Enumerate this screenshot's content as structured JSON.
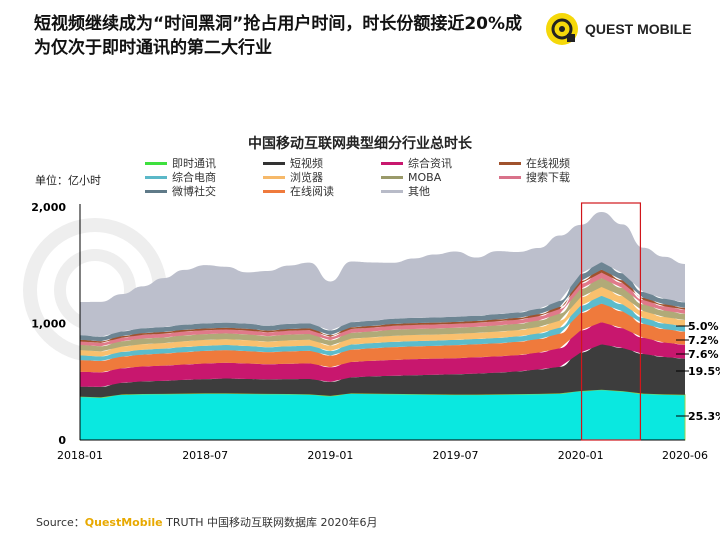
{
  "title": "短视频继续成为“时间黑洞”抢占用户时间，时长份额接近20%成为仅次于即时通讯的第二大行业",
  "logo": {
    "text": "QUEST MOBILE",
    "color": "#f5d80a"
  },
  "source": {
    "prefix": "Source：",
    "brand": "QuestMobile",
    "rest": " TRUTH 中国移动互联网数据库 2020年6月"
  },
  "chart_data": {
    "type": "area",
    "stacked": true,
    "title": "中国移动互联网典型细分行业总时长",
    "ylabel": "单位：亿小时",
    "ylim": [
      0,
      2000
    ],
    "yticks": [
      "0",
      "1,000",
      "2,000"
    ],
    "xticks": [
      "2018-01",
      "2018-07",
      "2019-01",
      "2019-07",
      "2020-01",
      "2020-06"
    ],
    "x": [
      "2018-01",
      "2018-02",
      "2018-03",
      "2018-04",
      "2018-05",
      "2018-06",
      "2018-07",
      "2018-08",
      "2018-09",
      "2018-10",
      "2018-11",
      "2018-12",
      "2019-01",
      "2019-02",
      "2019-03",
      "2019-04",
      "2019-05",
      "2019-06",
      "2019-07",
      "2019-08",
      "2019-09",
      "2019-10",
      "2019-11",
      "2019-12",
      "2020-01",
      "2020-02",
      "2020-03",
      "2020-04",
      "2020-05",
      "2020-06"
    ],
    "highlight": [
      "2020-02",
      "2020-03"
    ],
    "highlight_color": "#d0161b",
    "legend": [
      "即时通讯",
      "短视频",
      "综合资讯",
      "在线视频",
      "综合电商",
      "浏览器",
      "MOBA",
      "搜索下载",
      "微博社交",
      "在线阅读",
      "其他"
    ],
    "legend_colors": [
      "#3ee03e",
      "#333333",
      "#c8176e",
      "#a0522d",
      "#5bb8c8",
      "#f6b96a",
      "#9a9a6a",
      "#d9728a",
      "#5f7a88",
      "#ef7a3c",
      "#b8bbc8"
    ],
    "series": [
      {
        "name": "即时通讯",
        "color": "#0ae8e0",
        "values": [
          372,
          366,
          391,
          395,
          396,
          398,
          400,
          400,
          398,
          396,
          395,
          392,
          379,
          400,
          398,
          396,
          394,
          392,
          390,
          390,
          392,
          394,
          396,
          400,
          421,
          431,
          420,
          398,
          392,
          388
        ]
      },
      {
        "name": "短视频",
        "color": "#3d3d3d",
        "values": [
          86,
          90,
          100,
          108,
          112,
          118,
          122,
          128,
          126,
          124,
          128,
          132,
          120,
          138,
          148,
          155,
          162,
          168,
          174,
          180,
          186,
          195,
          210,
          228,
          330,
          390,
          370,
          340,
          320,
          310
        ]
      },
      {
        "name": "综合资讯",
        "color": "#c8176e",
        "values": [
          128,
          125,
          125,
          128,
          130,
          132,
          135,
          135,
          133,
          130,
          132,
          134,
          125,
          132,
          134,
          136,
          138,
          138,
          138,
          140,
          140,
          140,
          145,
          160,
          190,
          190,
          170,
          140,
          125,
          120
        ]
      },
      {
        "name": "在线阅读",
        "color": "#ef7a3c",
        "values": [
          100,
          98,
          100,
          102,
          104,
          106,
          108,
          108,
          106,
          104,
          106,
          108,
          100,
          106,
          108,
          110,
          110,
          110,
          112,
          112,
          112,
          114,
          116,
          125,
          150,
          160,
          145,
          120,
          115,
          112
        ]
      },
      {
        "name": "综合电商",
        "color": "#5cbccc",
        "values": [
          40,
          38,
          40,
          42,
          42,
          44,
          44,
          44,
          44,
          42,
          44,
          44,
          40,
          44,
          44,
          45,
          45,
          45,
          45,
          45,
          46,
          46,
          48,
          52,
          62,
          66,
          60,
          50,
          48,
          46
        ]
      },
      {
        "name": "浏览器",
        "color": "#f9c06e",
        "values": [
          45,
          44,
          46,
          48,
          48,
          50,
          50,
          50,
          50,
          48,
          50,
          50,
          46,
          50,
          50,
          52,
          52,
          52,
          52,
          52,
          54,
          54,
          56,
          60,
          72,
          76,
          70,
          58,
          56,
          54
        ]
      },
      {
        "name": "MOBA",
        "color": "#b0aa78",
        "values": [
          45,
          44,
          46,
          48,
          48,
          50,
          50,
          50,
          50,
          48,
          50,
          50,
          46,
          50,
          50,
          52,
          52,
          52,
          52,
          52,
          54,
          54,
          56,
          60,
          72,
          76,
          70,
          58,
          56,
          54
        ]
      },
      {
        "name": "搜索下载",
        "color": "#e07a8a",
        "values": [
          30,
          29,
          30,
          31,
          32,
          33,
          33,
          33,
          33,
          32,
          33,
          33,
          30,
          33,
          33,
          34,
          34,
          34,
          34,
          34,
          35,
          35,
          36,
          40,
          46,
          48,
          44,
          38,
          36,
          35
        ]
      },
      {
        "name": "在线视频",
        "color": "#a0522d",
        "values": [
          14,
          14,
          14,
          15,
          15,
          15,
          15,
          15,
          15,
          15,
          15,
          15,
          14,
          15,
          15,
          16,
          16,
          16,
          16,
          16,
          16,
          16,
          17,
          18,
          22,
          24,
          22,
          18,
          17,
          16
        ]
      },
      {
        "name": "微博社交",
        "color": "#6d8593",
        "values": [
          40,
          38,
          40,
          42,
          42,
          44,
          44,
          44,
          44,
          42,
          44,
          44,
          40,
          44,
          44,
          45,
          45,
          45,
          45,
          45,
          46,
          46,
          48,
          52,
          62,
          66,
          60,
          50,
          48,
          46
        ]
      },
      {
        "name": "其他",
        "color": "#bcbfcc",
        "values": [
          285,
          300,
          320,
          360,
          420,
          470,
          500,
          480,
          440,
          470,
          500,
          520,
          420,
          520,
          500,
          480,
          510,
          540,
          560,
          500,
          540,
          520,
          520,
          560,
          420,
          430,
          420,
          380,
          360,
          330
        ]
      }
    ],
    "annotations": [
      "5.0%",
      "7.2%",
      "7.6%",
      "19.5%",
      "25.3%"
    ]
  }
}
